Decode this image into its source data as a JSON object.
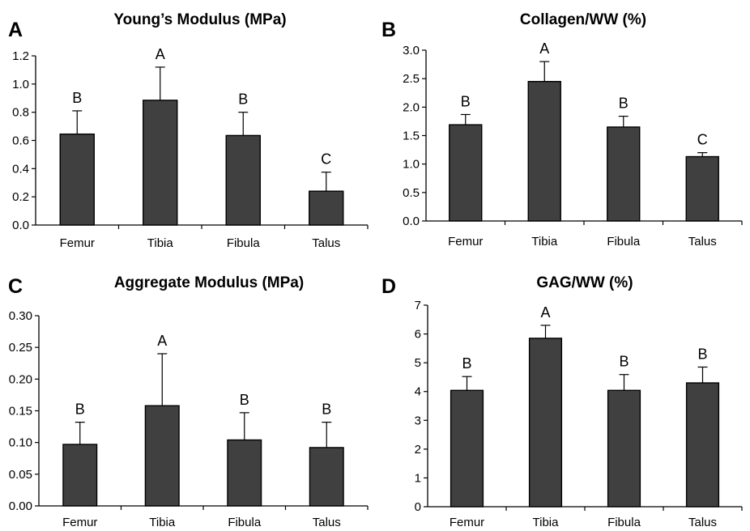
{
  "chart_data": [
    {
      "panel": "A",
      "type": "bar",
      "title": "Young’s Modulus (MPa)",
      "categories": [
        "Femur",
        "Tibia",
        "Fibula",
        "Talus"
      ],
      "values": [
        0.645,
        0.885,
        0.635,
        0.24
      ],
      "errors": [
        0.165,
        0.235,
        0.165,
        0.135
      ],
      "sig_labels": [
        "B",
        "A",
        "B",
        "C"
      ],
      "ylim": [
        0,
        1.2
      ],
      "yticks": [
        "0.0",
        "0.2",
        "0.4",
        "0.6",
        "0.8",
        "1.0",
        "1.2"
      ],
      "bar_color": "#404040"
    },
    {
      "panel": "B",
      "type": "bar",
      "title": "Collagen/WW (%)",
      "categories": [
        "Femur",
        "Tibia",
        "Fibula",
        "Talus"
      ],
      "values": [
        1.69,
        2.45,
        1.65,
        1.13
      ],
      "errors": [
        0.18,
        0.35,
        0.19,
        0.07
      ],
      "sig_labels": [
        "B",
        "A",
        "B",
        "C"
      ],
      "ylim": [
        0,
        3.0
      ],
      "yticks": [
        "0.0",
        "0.5",
        "1.0",
        "1.5",
        "2.0",
        "2.5",
        "3.0"
      ],
      "bar_color": "#404040"
    },
    {
      "panel": "C",
      "type": "bar",
      "title": "Aggregate Modulus (MPa)",
      "categories": [
        "Femur",
        "Tibia",
        "Fibula",
        "Talus"
      ],
      "values": [
        0.097,
        0.158,
        0.104,
        0.092
      ],
      "errors": [
        0.035,
        0.082,
        0.043,
        0.04
      ],
      "sig_labels": [
        "B",
        "A",
        "B",
        "B"
      ],
      "ylim": [
        0,
        0.3
      ],
      "yticks": [
        "0.00",
        "0.05",
        "0.10",
        "0.15",
        "0.20",
        "0.25",
        "0.30"
      ],
      "bar_color": "#404040"
    },
    {
      "panel": "D",
      "type": "bar",
      "title": "GAG/WW (%)",
      "categories": [
        "Femur",
        "Tibia",
        "Fibula",
        "Talus"
      ],
      "values": [
        4.04,
        5.85,
        4.04,
        4.3
      ],
      "errors": [
        0.48,
        0.45,
        0.55,
        0.55
      ],
      "sig_labels": [
        "B",
        "A",
        "B",
        "B"
      ],
      "ylim": [
        0,
        7
      ],
      "yticks": [
        "0",
        "1",
        "2",
        "3",
        "4",
        "5",
        "6",
        "7"
      ],
      "bar_color": "#404040"
    }
  ]
}
